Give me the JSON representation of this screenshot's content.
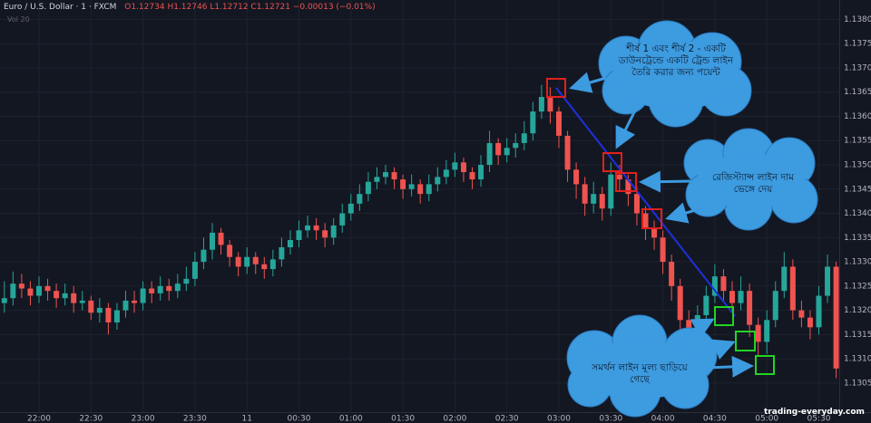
{
  "header": {
    "symbol": "Euro / U.S. Dollar",
    "interval": "1",
    "source": "FXCM",
    "ohlc": [
      "O1.12734",
      "H1.12746",
      "L1.12712",
      "C1.12721",
      "−0.00013 (−0.01%)"
    ],
    "volume_label": "Vol 20"
  },
  "watermark": "trading-everyday.com",
  "annotations": [
    "শীর্ষ 1 এবং শীর্ষ 2 - একটি ডাউনট্রেন্ডে একটি ট্রেন্ড লাইন তৈরি করার জন্য পয়েন্ট",
    "রেজিস্ট্যান্স লাইন দাম ভেঙ্গে দেয়",
    "সমর্থন লাইন মূল্য ছাড়িয়ে গেছে"
  ],
  "chart_data": {
    "type": "candlestick",
    "up_color": "#26a69a",
    "down_color": "#ef5350",
    "grid": true,
    "ylim": [
      1.1299,
      1.1384
    ],
    "yticks": [
      {
        "value": 1.138,
        "label": "1.13800"
      },
      {
        "value": 1.1375,
        "label": "1.13750"
      },
      {
        "value": 1.137,
        "label": "1.13700"
      },
      {
        "value": 1.1365,
        "label": "1.13650"
      },
      {
        "value": 1.136,
        "label": "1.13600"
      },
      {
        "value": 1.1355,
        "label": "1.13550"
      },
      {
        "value": 1.135,
        "label": "1.13500"
      },
      {
        "value": 1.1345,
        "label": "1.13450"
      },
      {
        "value": 1.134,
        "label": "1.13400"
      },
      {
        "value": 1.1335,
        "label": "1.13350"
      },
      {
        "value": 1.133,
        "label": "1.13300"
      },
      {
        "value": 1.1325,
        "label": "1.13250"
      },
      {
        "value": 1.132,
        "label": "1.13200"
      },
      {
        "value": 1.1315,
        "label": "1.13150"
      },
      {
        "value": 1.131,
        "label": "1.13100"
      },
      {
        "value": 1.1305,
        "label": "1.13050"
      }
    ],
    "categories": [
      null,
      null,
      null,
      null,
      "22:00",
      null,
      null,
      null,
      null,
      null,
      "22:30",
      null,
      null,
      null,
      null,
      null,
      "23:00",
      null,
      null,
      null,
      null,
      null,
      "23:30",
      null,
      null,
      null,
      null,
      null,
      "11",
      null,
      null,
      null,
      null,
      null,
      "00:30",
      null,
      null,
      null,
      null,
      null,
      "01:00",
      null,
      null,
      null,
      null,
      null,
      "01:30",
      null,
      null,
      null,
      null,
      null,
      "02:00",
      null,
      null,
      null,
      null,
      null,
      "02:30",
      null,
      null,
      null,
      null,
      null,
      "03:00",
      null,
      null,
      null,
      null,
      null,
      "03:30",
      null,
      null,
      null,
      null,
      null,
      "04:00",
      null,
      null,
      null,
      null,
      null,
      "04:30",
      null,
      null,
      null,
      null,
      null,
      "05:00",
      null,
      null,
      null,
      null,
      null,
      "05:30",
      null,
      null
    ],
    "open": [
      1.13215,
      1.13225,
      1.13255,
      1.13245,
      1.1323,
      1.1325,
      1.1324,
      1.13225,
      1.13235,
      1.13215,
      1.1322,
      1.13195,
      1.13205,
      1.13175,
      1.132,
      1.1322,
      1.13215,
      1.13245,
      1.13235,
      1.1325,
      1.1324,
      1.13255,
      1.13265,
      1.133,
      1.13325,
      1.1336,
      1.13335,
      1.1331,
      1.1329,
      1.1331,
      1.13295,
      1.13285,
      1.13305,
      1.1333,
      1.13345,
      1.13365,
      1.13375,
      1.13365,
      1.1335,
      1.13375,
      1.134,
      1.1342,
      1.1344,
      1.13465,
      1.13475,
      1.13485,
      1.1347,
      1.1345,
      1.1346,
      1.1344,
      1.1346,
      1.13475,
      1.1349,
      1.13505,
      1.13485,
      1.1347,
      1.135,
      1.13545,
      1.1352,
      1.13535,
      1.13545,
      1.13565,
      1.1361,
      1.1364,
      1.1361,
      1.1356,
      1.1349,
      1.1346,
      1.1342,
      1.1344,
      1.1341,
      1.1348,
      1.1347,
      1.1344,
      1.134,
      1.1337,
      1.1335,
      1.133,
      1.1325,
      1.1318,
      1.1316,
      1.1319,
      1.1323,
      1.1327,
      1.1324,
      1.13215,
      1.1324,
      1.1317,
      1.13135,
      1.1318,
      1.1324,
      1.1329,
      1.132,
      1.13185,
      1.13165,
      1.1323,
      1.1329
    ],
    "high": [
      1.1326,
      1.1328,
      1.13275,
      1.1326,
      1.1327,
      1.13265,
      1.13255,
      1.13255,
      1.1325,
      1.1324,
      1.1323,
      1.13225,
      1.13215,
      1.13215,
      1.1324,
      1.1324,
      1.1326,
      1.1326,
      1.1327,
      1.13265,
      1.13275,
      1.1329,
      1.1332,
      1.1335,
      1.1338,
      1.1337,
      1.13345,
      1.1332,
      1.1333,
      1.1332,
      1.1331,
      1.13325,
      1.1335,
      1.13365,
      1.13385,
      1.13395,
      1.1339,
      1.1338,
      1.1339,
      1.1342,
      1.1344,
      1.1346,
      1.13485,
      1.13495,
      1.135,
      1.13495,
      1.1348,
      1.1348,
      1.1347,
      1.1348,
      1.13495,
      1.1351,
      1.13525,
      1.13515,
      1.13495,
      1.1352,
      1.1357,
      1.13555,
      1.13555,
      1.13565,
      1.1359,
      1.1363,
      1.13665,
      1.1366,
      1.1362,
      1.1357,
      1.13505,
      1.13475,
      1.13465,
      1.13455,
      1.13505,
      1.135,
      1.1348,
      1.13455,
      1.13415,
      1.13385,
      1.13365,
      1.13315,
      1.13265,
      1.132,
      1.1321,
      1.1325,
      1.13295,
      1.13285,
      1.1326,
      1.1327,
      1.13255,
      1.13185,
      1.132,
      1.1326,
      1.1332,
      1.13305,
      1.1322,
      1.132,
      1.1325,
      1.13315,
      1.133
    ],
    "low": [
      1.13195,
      1.1321,
      1.13225,
      1.1321,
      1.13215,
      1.1322,
      1.13205,
      1.1321,
      1.13195,
      1.132,
      1.1318,
      1.13175,
      1.1315,
      1.1316,
      1.13185,
      1.13195,
      1.132,
      1.13215,
      1.1322,
      1.1322,
      1.13225,
      1.1324,
      1.1325,
      1.13285,
      1.13305,
      1.13315,
      1.1329,
      1.1327,
      1.13275,
      1.13275,
      1.13265,
      1.1327,
      1.1329,
      1.13315,
      1.1333,
      1.1335,
      1.13345,
      1.1333,
      1.13335,
      1.1336,
      1.13385,
      1.13405,
      1.13425,
      1.1345,
      1.1346,
      1.1345,
      1.1343,
      1.13435,
      1.1342,
      1.13425,
      1.13445,
      1.1346,
      1.13475,
      1.13465,
      1.1345,
      1.13455,
      1.13485,
      1.135,
      1.13505,
      1.13515,
      1.1353,
      1.1355,
      1.13595,
      1.13585,
      1.13535,
      1.13465,
      1.1343,
      1.13395,
      1.134,
      1.13385,
      1.13395,
      1.13445,
      1.13415,
      1.13375,
      1.13345,
      1.13325,
      1.13275,
      1.1322,
      1.1315,
      1.1313,
      1.1314,
      1.13175,
      1.13215,
      1.1322,
      1.13195,
      1.132,
      1.13145,
      1.13105,
      1.1311,
      1.13165,
      1.13225,
      1.1318,
      1.13165,
      1.1314,
      1.1315,
      1.13215,
      1.1306
    ],
    "close": [
      1.13225,
      1.13255,
      1.13245,
      1.1323,
      1.1325,
      1.1324,
      1.13225,
      1.13235,
      1.13215,
      1.1322,
      1.13195,
      1.13205,
      1.13175,
      1.132,
      1.1322,
      1.13215,
      1.13245,
      1.13235,
      1.1325,
      1.1324,
      1.13255,
      1.13265,
      1.133,
      1.13325,
      1.1336,
      1.13335,
      1.1331,
      1.1329,
      1.1331,
      1.13295,
      1.13285,
      1.13305,
      1.1333,
      1.13345,
      1.13365,
      1.13375,
      1.13365,
      1.1335,
      1.13375,
      1.134,
      1.1342,
      1.1344,
      1.13465,
      1.13475,
      1.13485,
      1.1347,
      1.1345,
      1.1346,
      1.1344,
      1.1346,
      1.13475,
      1.1349,
      1.13505,
      1.13485,
      1.1347,
      1.135,
      1.13545,
      1.1352,
      1.13535,
      1.13545,
      1.13565,
      1.1361,
      1.1364,
      1.1361,
      1.1356,
      1.1349,
      1.1346,
      1.1342,
      1.1344,
      1.1341,
      1.1348,
      1.1347,
      1.1344,
      1.134,
      1.1337,
      1.1335,
      1.133,
      1.1325,
      1.1318,
      1.1316,
      1.1319,
      1.1323,
      1.1327,
      1.1324,
      1.13215,
      1.1324,
      1.1317,
      1.13135,
      1.1318,
      1.1324,
      1.1329,
      1.132,
      1.13185,
      1.13165,
      1.1323,
      1.1329,
      1.1308
    ]
  }
}
